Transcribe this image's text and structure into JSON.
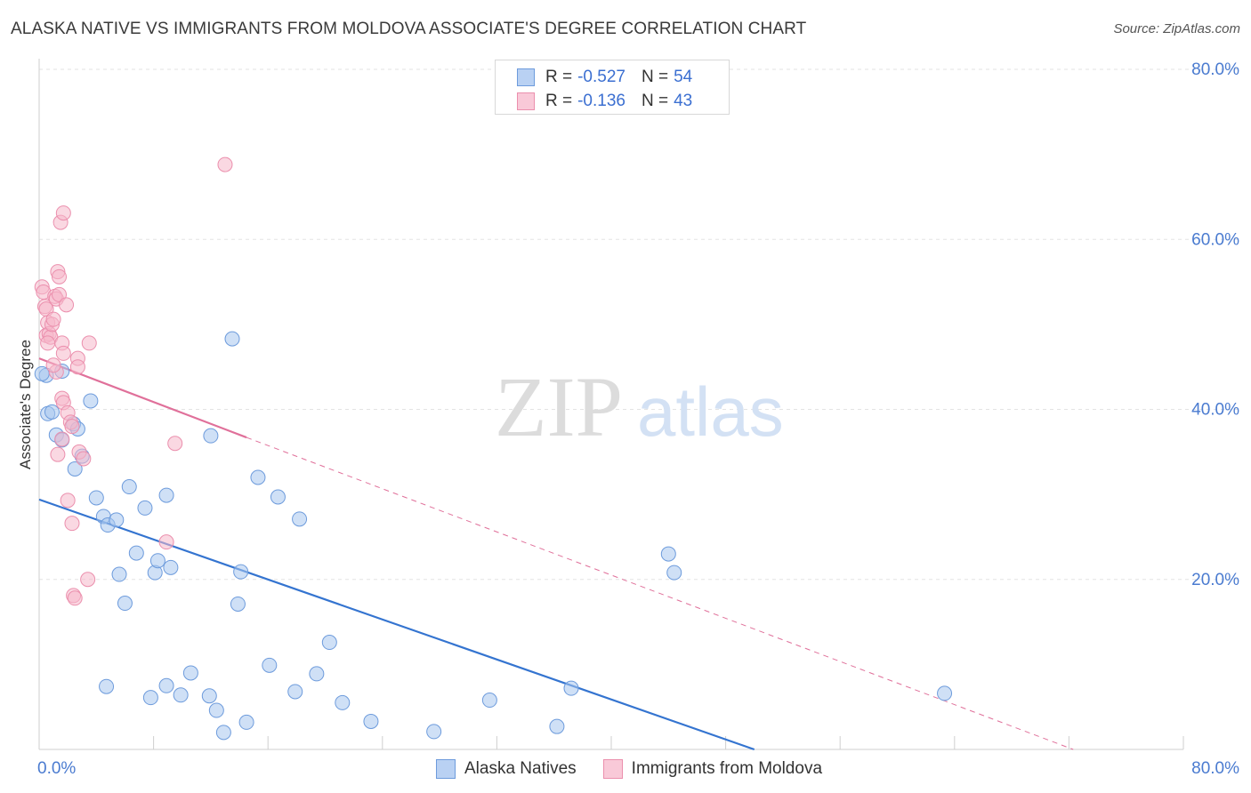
{
  "chart_data": {
    "type": "scatter",
    "title": "ALASKA NATIVE VS IMMIGRANTS FROM MOLDOVA ASSOCIATE'S DEGREE CORRELATION CHART",
    "source": "Source: ZipAtlas.com",
    "ylabel": "Associate's Degree",
    "xlabel": "",
    "xlim": [
      0,
      80
    ],
    "ylim": [
      0,
      80
    ],
    "x_tick_labels": [
      "0.0%",
      "80.0%"
    ],
    "y_tick_labels": [
      "20.0%",
      "40.0%",
      "60.0%",
      "80.0%"
    ],
    "y_ticks": [
      20,
      40,
      60,
      80
    ],
    "watermark": {
      "left": "ZIP",
      "right": "atlas"
    },
    "legend": [
      {
        "r_label": "R =",
        "r_value": "-0.527",
        "n_label": "N =",
        "n_value": "54"
      },
      {
        "r_label": "R =",
        "r_value": "-0.136",
        "n_label": "N =",
        "n_value": "43"
      }
    ],
    "series": [
      {
        "name": "Alaska Natives",
        "color": "#a8c6ef",
        "edge": "#6d9bdc",
        "line_color": "#3474d0",
        "trend": {
          "x0": 0,
          "y0": 29.4,
          "x1": 50,
          "y1": 0
        },
        "points": [
          [
            0.5,
            44.0
          ],
          [
            0.6,
            39.5
          ],
          [
            0.9,
            39.7
          ],
          [
            1.2,
            37.0
          ],
          [
            1.6,
            44.5
          ],
          [
            1.6,
            36.4
          ],
          [
            2.4,
            38.3
          ],
          [
            2.5,
            33.0
          ],
          [
            2.7,
            37.7
          ],
          [
            3.0,
            34.5
          ],
          [
            3.6,
            41.0
          ],
          [
            4.0,
            29.6
          ],
          [
            4.5,
            27.4
          ],
          [
            4.8,
            26.4
          ],
          [
            5.4,
            27.0
          ],
          [
            5.6,
            20.6
          ],
          [
            6.0,
            17.2
          ],
          [
            6.3,
            30.9
          ],
          [
            6.8,
            23.1
          ],
          [
            7.4,
            28.4
          ],
          [
            8.1,
            20.8
          ],
          [
            8.3,
            22.2
          ],
          [
            8.9,
            29.9
          ],
          [
            9.2,
            21.4
          ],
          [
            12.0,
            36.9
          ],
          [
            13.5,
            48.3
          ],
          [
            13.9,
            17.1
          ],
          [
            14.1,
            20.9
          ],
          [
            15.3,
            32.0
          ],
          [
            16.7,
            29.7
          ],
          [
            18.2,
            27.1
          ],
          [
            20.3,
            12.6
          ],
          [
            4.7,
            7.4
          ],
          [
            7.8,
            6.1
          ],
          [
            8.9,
            7.5
          ],
          [
            9.9,
            6.4
          ],
          [
            10.6,
            9.0
          ],
          [
            11.9,
            6.3
          ],
          [
            12.4,
            4.6
          ],
          [
            12.9,
            2.0
          ],
          [
            14.5,
            3.2
          ],
          [
            16.1,
            9.9
          ],
          [
            17.9,
            6.8
          ],
          [
            19.4,
            8.9
          ],
          [
            21.2,
            5.5
          ],
          [
            23.2,
            3.3
          ],
          [
            27.6,
            2.1
          ],
          [
            31.5,
            5.8
          ],
          [
            36.2,
            2.7
          ],
          [
            37.2,
            7.2
          ],
          [
            44.0,
            23.0
          ],
          [
            44.4,
            20.8
          ],
          [
            63.3,
            6.6
          ],
          [
            0.2,
            44.2
          ]
        ]
      },
      {
        "name": "Immigrants from Moldova",
        "color": "#f6b8cb",
        "edge": "#eb8fad",
        "line_color": "#e0709a",
        "trend": {
          "x0": 0,
          "y0": 46.0,
          "x1": 14.5,
          "y1": 36.7,
          "dash_to_x": 72.3,
          "dash_to_y": 0
        },
        "points": [
          [
            0.2,
            54.4
          ],
          [
            0.3,
            53.8
          ],
          [
            0.4,
            52.1
          ],
          [
            0.5,
            51.8
          ],
          [
            0.6,
            50.2
          ],
          [
            0.5,
            48.7
          ],
          [
            0.7,
            48.9
          ],
          [
            0.8,
            48.5
          ],
          [
            0.9,
            50.0
          ],
          [
            0.6,
            47.8
          ],
          [
            1.0,
            50.6
          ],
          [
            1.1,
            53.3
          ],
          [
            1.2,
            53.0
          ],
          [
            1.3,
            56.2
          ],
          [
            1.4,
            55.6
          ],
          [
            1.4,
            53.5
          ],
          [
            1.5,
            62.0
          ],
          [
            1.7,
            63.1
          ],
          [
            1.6,
            47.8
          ],
          [
            1.7,
            46.6
          ],
          [
            1.9,
            52.3
          ],
          [
            1.2,
            44.4
          ],
          [
            1.6,
            41.3
          ],
          [
            1.7,
            40.8
          ],
          [
            2.0,
            39.6
          ],
          [
            2.2,
            38.5
          ],
          [
            2.3,
            38.0
          ],
          [
            1.3,
            34.7
          ],
          [
            1.6,
            36.5
          ],
          [
            2.8,
            35.0
          ],
          [
            2.7,
            46.0
          ],
          [
            2.7,
            45.0
          ],
          [
            3.5,
            47.8
          ],
          [
            2.0,
            29.3
          ],
          [
            2.3,
            26.6
          ],
          [
            2.4,
            18.1
          ],
          [
            2.5,
            17.8
          ],
          [
            3.4,
            20.0
          ],
          [
            8.9,
            24.4
          ],
          [
            9.5,
            36.0
          ],
          [
            13.0,
            68.8
          ],
          [
            1.0,
            45.2
          ],
          [
            3.1,
            34.2
          ]
        ]
      }
    ]
  }
}
